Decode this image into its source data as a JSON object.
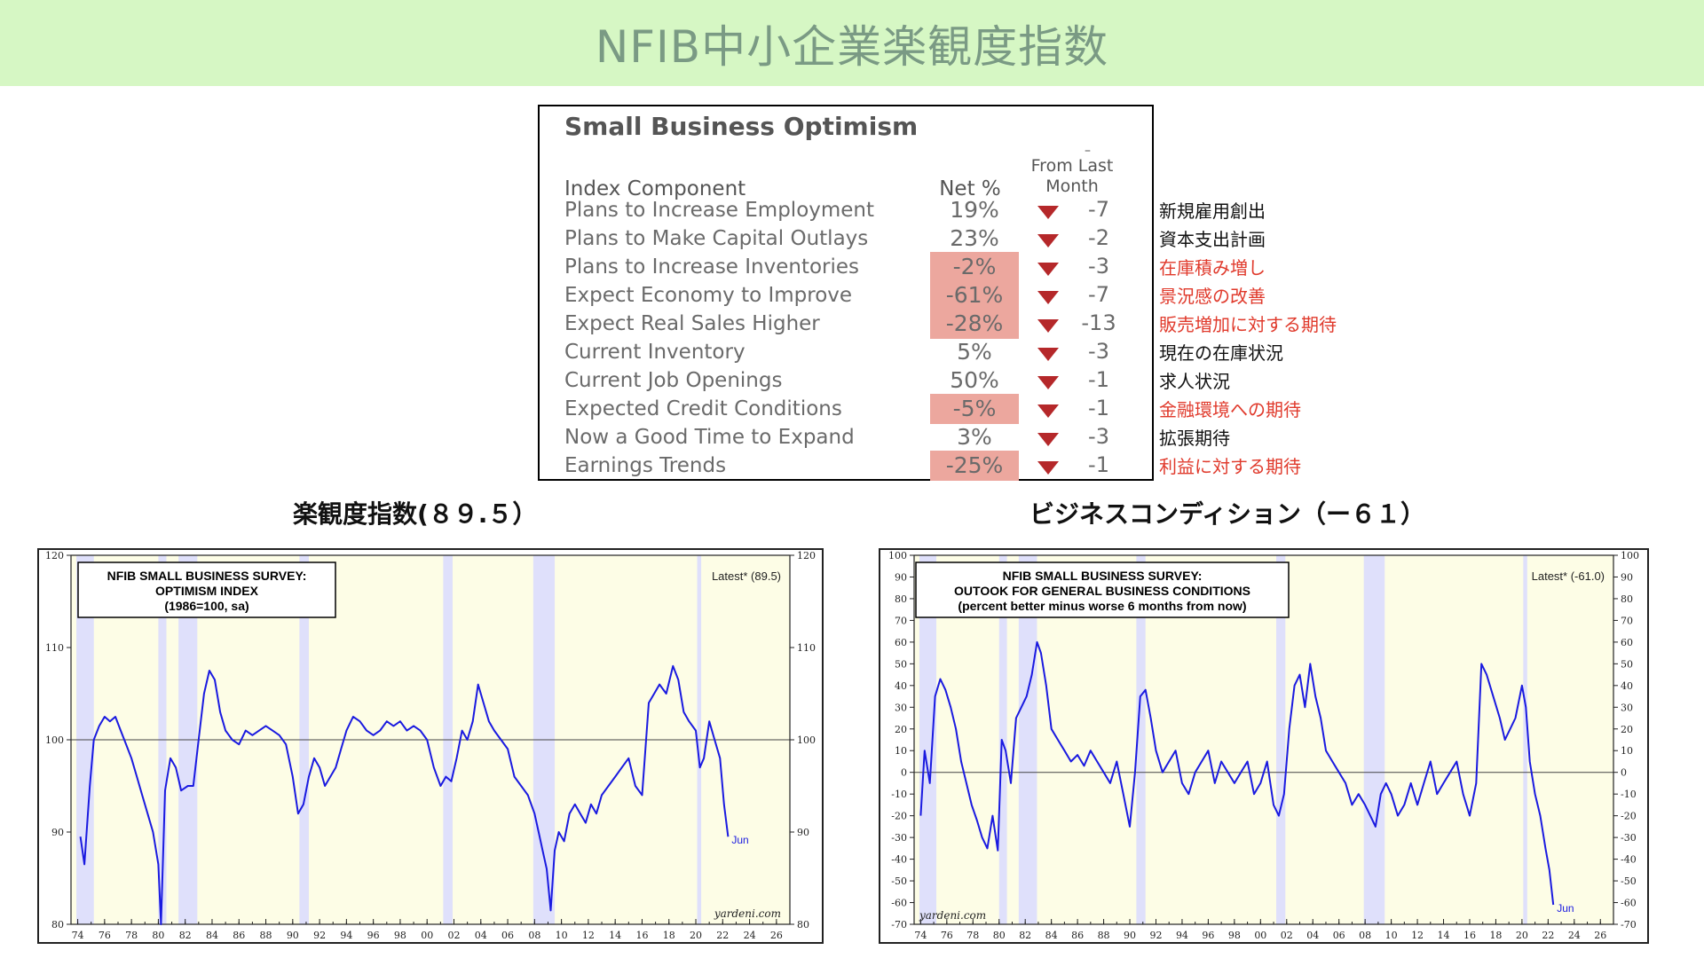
{
  "page_title": "NFIB中小企業楽観度指数",
  "table": {
    "title": "Small Business Optimism",
    "header_mark": "–",
    "header_from_last_month": [
      "From Last",
      "Month"
    ],
    "header_component": "Index Component",
    "header_net": "Net %",
    "rows": [
      {
        "label": "Plans to Increase Employment",
        "net": "19%",
        "change": "-7",
        "highlight": false,
        "jp": "新規雇用創出",
        "jp_color": "black"
      },
      {
        "label": "Plans to Make Capital Outlays",
        "net": "23%",
        "change": "-2",
        "highlight": false,
        "jp": "資本支出計画",
        "jp_color": "black"
      },
      {
        "label": "Plans to Increase Inventories",
        "net": "-2%",
        "change": "-3",
        "highlight": true,
        "jp": "在庫積み増し",
        "jp_color": "red"
      },
      {
        "label": "Expect Economy to Improve",
        "net": "-61%",
        "change": "-7",
        "highlight": true,
        "jp": "景況感の改善",
        "jp_color": "red"
      },
      {
        "label": "Expect Real Sales Higher",
        "net": "-28%",
        "change": "-13",
        "highlight": true,
        "jp": "販売増加に対する期待",
        "jp_color": "red"
      },
      {
        "label": "Current Inventory",
        "net": "5%",
        "change": "-3",
        "highlight": false,
        "jp": "現在の在庫状況",
        "jp_color": "black"
      },
      {
        "label": "Current Job Openings",
        "net": "50%",
        "change": "-1",
        "highlight": false,
        "jp": "求人状況",
        "jp_color": "black"
      },
      {
        "label": "Expected Credit Conditions",
        "net": "-5%",
        "change": "-1",
        "highlight": true,
        "jp": "金融環境への期待",
        "jp_color": "red"
      },
      {
        "label": "Now a Good Time to Expand",
        "net": "3%",
        "change": "-3",
        "highlight": false,
        "jp": "拡張期待",
        "jp_color": "black"
      },
      {
        "label": "Earnings Trends",
        "net": "-25%",
        "change": "-1",
        "highlight": true,
        "jp": "利益に対する期待",
        "jp_color": "red"
      }
    ]
  },
  "captions": {
    "chart1": "楽観度指数(８９.５）",
    "chart2": "ビジネスコンディション（ー６１）"
  },
  "colors": {
    "banner": "#d6f7c4",
    "banner_text": "#7a9a84",
    "highlight": "#eca79e",
    "down_triangle": "#b5282a",
    "jp_red": "#e03a2c",
    "chart_bg": "#fdfde6",
    "recession": "#dfe0fb",
    "series": "#1a1ae0"
  },
  "chart_data": [
    {
      "type": "line",
      "box_lines": [
        "NFIB SMALL BUSINESS SURVEY:",
        "OPTIMISM INDEX",
        "(1986=100, sa)"
      ],
      "latest_label": "Latest* (89.5)",
      "end_label": "Jun",
      "credit": "yardeni.com",
      "ylim": [
        80,
        120
      ],
      "yticks": [
        80,
        90,
        100,
        110,
        120
      ],
      "xlim": [
        1973.5,
        2027
      ],
      "xtick_labels": [
        "74",
        "76",
        "78",
        "80",
        "82",
        "84",
        "86",
        "88",
        "90",
        "92",
        "94",
        "96",
        "98",
        "00",
        "02",
        "04",
        "06",
        "08",
        "10",
        "12",
        "14",
        "16",
        "18",
        "20",
        "22",
        "24",
        "26"
      ],
      "reference_line": 100,
      "recessions": [
        [
          1973.9,
          1975.2
        ],
        [
          1980.0,
          1980.6
        ],
        [
          1981.5,
          1982.9
        ],
        [
          1990.5,
          1991.2
        ],
        [
          2001.2,
          2001.9
        ],
        [
          2007.9,
          2009.5
        ],
        [
          2020.1,
          2020.4
        ]
      ],
      "series": [
        {
          "x": [
            1974.2,
            1974.5,
            1974.9,
            1975.2,
            1975.6,
            1976.0,
            1976.4,
            1976.8,
            1977.2,
            1977.6,
            1978.0,
            1978.4,
            1978.8,
            1979.2,
            1979.6,
            1980.0,
            1980.2,
            1980.5,
            1980.9,
            1981.3,
            1981.7,
            1982.2,
            1982.6,
            1983.0,
            1983.4,
            1983.8,
            1984.2,
            1984.6,
            1985.0,
            1985.5,
            1986.0,
            1986.5,
            1987.0,
            1987.5,
            1988.0,
            1988.5,
            1989.0,
            1989.5,
            1990.0,
            1990.4,
            1990.8,
            1991.2,
            1991.6,
            1992.0,
            1992.4,
            1992.8,
            1993.2,
            1993.6,
            1994.0,
            1994.5,
            1995.0,
            1995.5,
            1996.0,
            1996.5,
            1997.0,
            1997.5,
            1998.0,
            1998.5,
            1999.0,
            1999.5,
            2000.0,
            2000.5,
            2001.0,
            2001.4,
            2001.8,
            2002.2,
            2002.6,
            2003.0,
            2003.4,
            2003.8,
            2004.2,
            2004.6,
            2005.0,
            2005.5,
            2006.0,
            2006.5,
            2007.0,
            2007.5,
            2008.0,
            2008.3,
            2008.6,
            2008.9,
            2009.2,
            2009.5,
            2009.8,
            2010.2,
            2010.6,
            2011.0,
            2011.4,
            2011.8,
            2012.2,
            2012.6,
            2013.0,
            2013.5,
            2014.0,
            2014.5,
            2015.0,
            2015.5,
            2016.0,
            2016.5,
            2016.9,
            2017.3,
            2017.8,
            2018.3,
            2018.7,
            2019.1,
            2019.5,
            2020.0,
            2020.3,
            2020.6,
            2021.0,
            2021.4,
            2021.8,
            2022.1,
            2022.4
          ],
          "values": [
            89.5,
            86.5,
            95,
            100,
            101.5,
            102.5,
            102,
            102.5,
            101,
            99.5,
            98,
            96,
            94,
            92,
            90,
            86.5,
            80,
            94.5,
            98,
            97,
            94.5,
            95,
            95,
            100,
            105,
            107.5,
            106.5,
            103,
            101,
            100,
            99.5,
            101,
            100.5,
            101,
            101.5,
            101,
            100.5,
            99.5,
            96,
            92,
            93,
            96,
            98,
            97,
            95,
            96,
            97,
            99,
            101,
            102.5,
            102,
            101,
            100.5,
            101,
            102,
            101.5,
            102,
            101,
            101.5,
            101,
            100,
            97,
            95,
            96,
            95.5,
            98,
            101,
            100,
            102,
            106,
            104,
            102,
            101,
            100,
            99,
            96,
            95,
            94,
            92,
            90,
            88,
            86,
            81.5,
            88,
            90,
            89,
            92,
            93,
            92,
            91,
            93,
            92,
            94,
            95,
            96,
            97,
            98,
            95,
            94,
            104,
            105,
            106,
            105,
            108,
            106.5,
            103,
            102,
            101,
            97,
            98,
            102,
            100,
            98,
            93,
            89.5
          ]
        }
      ]
    },
    {
      "type": "line",
      "box_lines": [
        "NFIB SMALL BUSINESS SURVEY:",
        "OUTOOK FOR GENERAL BUSINESS CONDITIONS",
        "(percent better minus worse 6 months from now)"
      ],
      "latest_label": "Latest* (-61.0)",
      "end_label": "Jun",
      "credit": "yardeni.com",
      "ylim": [
        -70,
        100
      ],
      "yticks": [
        -70,
        -60,
        -50,
        -40,
        -30,
        -20,
        -10,
        0,
        10,
        20,
        30,
        40,
        50,
        60,
        70,
        80,
        90,
        100
      ],
      "xlim": [
        1973.5,
        2027
      ],
      "xtick_labels": [
        "74",
        "76",
        "78",
        "80",
        "82",
        "84",
        "86",
        "88",
        "90",
        "92",
        "94",
        "96",
        "98",
        "00",
        "02",
        "04",
        "06",
        "08",
        "10",
        "12",
        "14",
        "16",
        "18",
        "20",
        "22",
        "24",
        "26"
      ],
      "reference_line": 0,
      "recessions": [
        [
          1973.9,
          1975.2
        ],
        [
          1980.0,
          1980.6
        ],
        [
          1981.5,
          1982.9
        ],
        [
          1990.5,
          1991.2
        ],
        [
          2001.2,
          2001.9
        ],
        [
          2007.9,
          2009.5
        ],
        [
          2020.1,
          2020.4
        ]
      ],
      "series": [
        {
          "x": [
            1974.0,
            1974.3,
            1974.7,
            1975.1,
            1975.5,
            1975.9,
            1976.3,
            1976.7,
            1977.1,
            1977.5,
            1977.9,
            1978.3,
            1978.7,
            1979.1,
            1979.5,
            1979.9,
            1980.2,
            1980.5,
            1980.9,
            1981.3,
            1981.7,
            1982.1,
            1982.5,
            1982.9,
            1983.2,
            1983.6,
            1984.0,
            1984.5,
            1985.0,
            1985.5,
            1986.0,
            1986.5,
            1987.0,
            1987.5,
            1988.0,
            1988.5,
            1989.0,
            1989.5,
            1990.0,
            1990.4,
            1990.8,
            1991.2,
            1991.6,
            1992.0,
            1992.5,
            1993.0,
            1993.5,
            1994.0,
            1994.5,
            1995.0,
            1995.5,
            1996.0,
            1996.5,
            1997.0,
            1997.5,
            1998.0,
            1998.5,
            1999.0,
            1999.5,
            2000.0,
            2000.5,
            2001.0,
            2001.4,
            2001.8,
            2002.2,
            2002.6,
            2003.0,
            2003.4,
            2003.8,
            2004.2,
            2004.6,
            2005.0,
            2005.5,
            2006.0,
            2006.5,
            2007.0,
            2007.5,
            2008.0,
            2008.4,
            2008.8,
            2009.2,
            2009.6,
            2010.0,
            2010.5,
            2011.0,
            2011.5,
            2012.0,
            2012.5,
            2013.0,
            2013.5,
            2014.0,
            2014.5,
            2015.0,
            2015.5,
            2016.0,
            2016.5,
            2016.9,
            2017.3,
            2017.8,
            2018.3,
            2018.7,
            2019.1,
            2019.5,
            2020.0,
            2020.3,
            2020.6,
            2021.0,
            2021.4,
            2021.8,
            2022.1,
            2022.4
          ],
          "values": [
            -20,
            10,
            -5,
            35,
            43,
            38,
            30,
            20,
            5,
            -5,
            -15,
            -22,
            -30,
            -35,
            -20,
            -36,
            15,
            10,
            -5,
            25,
            30,
            35,
            45,
            60,
            55,
            40,
            20,
            15,
            10,
            5,
            8,
            3,
            10,
            5,
            0,
            -5,
            5,
            -10,
            -25,
            0,
            35,
            38,
            25,
            10,
            0,
            5,
            10,
            -5,
            -10,
            0,
            5,
            10,
            -5,
            5,
            0,
            -5,
            0,
            5,
            -10,
            -5,
            5,
            -15,
            -20,
            -10,
            20,
            40,
            45,
            30,
            50,
            35,
            25,
            10,
            5,
            0,
            -5,
            -15,
            -10,
            -15,
            -20,
            -25,
            -10,
            -5,
            -10,
            -20,
            -15,
            -5,
            -15,
            -5,
            5,
            -10,
            -5,
            0,
            5,
            -10,
            -20,
            -5,
            50,
            45,
            35,
            25,
            15,
            20,
            25,
            40,
            30,
            5,
            -10,
            -20,
            -35,
            -45,
            -61
          ]
        }
      ]
    }
  ]
}
